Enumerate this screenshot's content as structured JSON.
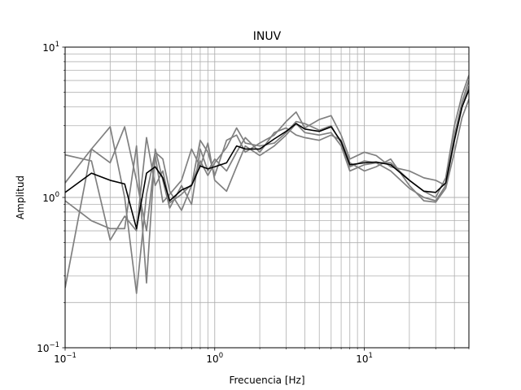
{
  "chart_data": {
    "type": "line",
    "title": "INUV",
    "xlabel": "Frecuencia [Hz]",
    "ylabel": "Amplitud",
    "xscale": "log",
    "yscale": "log",
    "xlim": [
      0.1,
      50
    ],
    "ylim": [
      0.1,
      10
    ],
    "grid": "major-and-minor",
    "legend": "none",
    "x_ticks": [
      {
        "value": 0.1,
        "base": "10",
        "exp": "−1"
      },
      {
        "value": 1,
        "base": "10",
        "exp": "0"
      },
      {
        "value": 10,
        "base": "10",
        "exp": "1"
      }
    ],
    "y_ticks": [
      {
        "value": 0.1,
        "base": "10",
        "exp": "−1"
      },
      {
        "value": 1,
        "base": "10",
        "exp": "0"
      },
      {
        "value": 10,
        "base": "10",
        "exp": "1"
      }
    ],
    "colors": {
      "components": "#808080",
      "average": "#000000",
      "grid": "#b0b0b0"
    },
    "series": [
      {
        "role": "component",
        "points": [
          [
            0.1,
            1.92
          ],
          [
            0.15,
            1.75
          ],
          [
            0.2,
            0.52
          ],
          [
            0.25,
            0.75
          ],
          [
            0.3,
            0.6
          ],
          [
            0.35,
            2.5
          ],
          [
            0.4,
            1.2
          ],
          [
            0.45,
            1.5
          ],
          [
            0.5,
            0.92
          ],
          [
            0.6,
            1.05
          ],
          [
            0.7,
            1.22
          ],
          [
            0.8,
            1.75
          ],
          [
            0.9,
            1.4
          ],
          [
            1.0,
            1.7
          ],
          [
            1.2,
            2.15
          ],
          [
            1.4,
            2.9
          ],
          [
            1.6,
            2.3
          ],
          [
            2.0,
            2.2
          ],
          [
            2.5,
            2.3
          ],
          [
            3.0,
            2.7
          ],
          [
            3.5,
            3.2
          ],
          [
            4.0,
            3.1
          ],
          [
            5.0,
            2.8
          ],
          [
            6.0,
            3.0
          ],
          [
            7.0,
            2.3
          ],
          [
            8.0,
            1.6
          ],
          [
            10.0,
            1.75
          ],
          [
            12.0,
            1.7
          ],
          [
            15.0,
            1.7
          ],
          [
            20.0,
            1.3
          ],
          [
            25.0,
            1.1
          ],
          [
            30.0,
            1.0
          ],
          [
            35.0,
            1.35
          ],
          [
            40.0,
            3.0
          ],
          [
            45.0,
            4.8
          ],
          [
            50.0,
            6.5
          ]
        ]
      },
      {
        "role": "component",
        "points": [
          [
            0.1,
            1.25
          ],
          [
            0.15,
            2.1
          ],
          [
            0.2,
            2.95
          ],
          [
            0.25,
            1.0
          ],
          [
            0.3,
            0.23
          ],
          [
            0.35,
            1.05
          ],
          [
            0.4,
            2.0
          ],
          [
            0.45,
            1.8
          ],
          [
            0.5,
            1.1
          ],
          [
            0.6,
            0.82
          ],
          [
            0.7,
            1.2
          ],
          [
            0.8,
            2.4
          ],
          [
            0.9,
            2.0
          ],
          [
            1.0,
            1.4
          ],
          [
            1.2,
            2.4
          ],
          [
            1.4,
            2.6
          ],
          [
            1.6,
            2.0
          ],
          [
            2.0,
            2.3
          ],
          [
            2.5,
            2.6
          ],
          [
            3.0,
            3.2
          ],
          [
            3.5,
            3.7
          ],
          [
            4.0,
            2.9
          ],
          [
            5.0,
            3.3
          ],
          [
            6.0,
            3.5
          ],
          [
            7.0,
            2.6
          ],
          [
            8.0,
            1.8
          ],
          [
            10.0,
            2.0
          ],
          [
            12.0,
            1.9
          ],
          [
            15.0,
            1.6
          ],
          [
            20.0,
            1.5
          ],
          [
            25.0,
            1.35
          ],
          [
            30.0,
            1.3
          ],
          [
            35.0,
            1.2
          ],
          [
            40.0,
            2.4
          ],
          [
            45.0,
            4.0
          ],
          [
            50.0,
            5.5
          ]
        ]
      },
      {
        "role": "component",
        "points": [
          [
            0.1,
            0.95
          ],
          [
            0.15,
            0.7
          ],
          [
            0.2,
            0.62
          ],
          [
            0.25,
            0.62
          ],
          [
            0.3,
            2.2
          ],
          [
            0.35,
            0.27
          ],
          [
            0.4,
            2.1
          ],
          [
            0.45,
            1.3
          ],
          [
            0.5,
            0.85
          ],
          [
            0.6,
            1.2
          ],
          [
            0.7,
            0.9
          ],
          [
            0.8,
            2.1
          ],
          [
            0.9,
            1.5
          ],
          [
            1.0,
            1.8
          ],
          [
            1.2,
            1.5
          ],
          [
            1.4,
            2.0
          ],
          [
            1.6,
            2.5
          ],
          [
            2.0,
            2.0
          ],
          [
            2.5,
            2.7
          ],
          [
            3.0,
            2.9
          ],
          [
            3.5,
            2.6
          ],
          [
            4.0,
            2.5
          ],
          [
            5.0,
            2.4
          ],
          [
            6.0,
            2.6
          ],
          [
            7.0,
            2.4
          ],
          [
            8.0,
            1.7
          ],
          [
            10.0,
            1.5
          ],
          [
            12.0,
            1.6
          ],
          [
            15.0,
            1.8
          ],
          [
            20.0,
            1.2
          ],
          [
            25.0,
            0.95
          ],
          [
            30.0,
            0.93
          ],
          [
            35.0,
            1.15
          ],
          [
            40.0,
            2.0
          ],
          [
            45.0,
            3.4
          ],
          [
            50.0,
            4.5
          ]
        ]
      },
      {
        "role": "component",
        "points": [
          [
            0.1,
            0.25
          ],
          [
            0.15,
            2.1
          ],
          [
            0.2,
            1.7
          ],
          [
            0.25,
            2.95
          ],
          [
            0.3,
            1.3
          ],
          [
            0.35,
            0.6
          ],
          [
            0.4,
            1.9
          ],
          [
            0.45,
            0.93
          ],
          [
            0.5,
            1.05
          ],
          [
            0.6,
            1.3
          ],
          [
            0.7,
            2.1
          ],
          [
            0.8,
            1.6
          ],
          [
            0.9,
            2.3
          ],
          [
            1.0,
            1.3
          ],
          [
            1.2,
            1.1
          ],
          [
            1.4,
            1.6
          ],
          [
            1.6,
            2.2
          ],
          [
            2.0,
            1.9
          ],
          [
            2.5,
            2.2
          ],
          [
            3.0,
            2.6
          ],
          [
            3.5,
            3.1
          ],
          [
            4.0,
            2.7
          ],
          [
            5.0,
            2.6
          ],
          [
            6.0,
            2.7
          ],
          [
            7.0,
            2.2
          ],
          [
            8.0,
            1.5
          ],
          [
            10.0,
            1.65
          ],
          [
            12.0,
            1.7
          ],
          [
            15.0,
            1.5
          ],
          [
            20.0,
            1.15
          ],
          [
            25.0,
            1.0
          ],
          [
            30.0,
            0.95
          ],
          [
            35.0,
            1.2
          ],
          [
            40.0,
            2.6
          ],
          [
            45.0,
            4.3
          ],
          [
            50.0,
            6.0
          ]
        ]
      },
      {
        "role": "average",
        "points": [
          [
            0.1,
            1.08
          ],
          [
            0.15,
            1.45
          ],
          [
            0.2,
            1.3
          ],
          [
            0.25,
            1.23
          ],
          [
            0.3,
            0.62
          ],
          [
            0.35,
            1.45
          ],
          [
            0.4,
            1.6
          ],
          [
            0.45,
            1.35
          ],
          [
            0.5,
            0.95
          ],
          [
            0.6,
            1.12
          ],
          [
            0.7,
            1.2
          ],
          [
            0.8,
            1.62
          ],
          [
            0.9,
            1.55
          ],
          [
            1.0,
            1.6
          ],
          [
            1.2,
            1.7
          ],
          [
            1.4,
            2.2
          ],
          [
            1.6,
            2.1
          ],
          [
            2.0,
            2.1
          ],
          [
            2.5,
            2.45
          ],
          [
            3.0,
            2.75
          ],
          [
            3.5,
            3.1
          ],
          [
            4.0,
            2.85
          ],
          [
            5.0,
            2.75
          ],
          [
            6.0,
            2.95
          ],
          [
            7.0,
            2.35
          ],
          [
            8.0,
            1.65
          ],
          [
            10.0,
            1.7
          ],
          [
            12.0,
            1.72
          ],
          [
            15.0,
            1.65
          ],
          [
            20.0,
            1.3
          ],
          [
            25.0,
            1.1
          ],
          [
            30.0,
            1.08
          ],
          [
            35.0,
            1.25
          ],
          [
            40.0,
            2.4
          ],
          [
            45.0,
            4.0
          ],
          [
            50.0,
            5.2
          ]
        ]
      }
    ]
  }
}
